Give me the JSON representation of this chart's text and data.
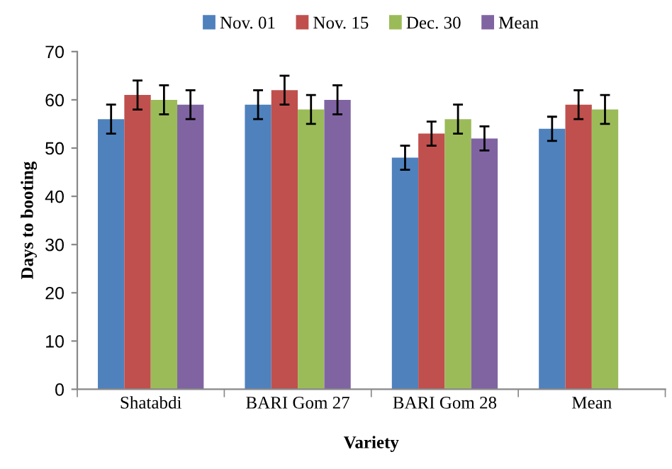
{
  "chart_data": {
    "type": "bar",
    "xlabel": "Variety",
    "ylabel": "Days to booting",
    "categories": [
      "Shatabdi",
      "BARI Gom 27",
      "BARI Gom 28",
      "Mean"
    ],
    "series": [
      {
        "name": "Nov. 01",
        "color": "#4f81bd",
        "values": [
          56,
          59,
          48,
          54
        ],
        "errors": [
          3,
          3,
          2.5,
          2.5
        ]
      },
      {
        "name": "Nov. 15",
        "color": "#c0504d",
        "values": [
          61,
          62,
          53,
          59
        ],
        "errors": [
          3,
          3,
          2.5,
          3
        ]
      },
      {
        "name": "Dec. 30",
        "color": "#9bbb59",
        "values": [
          60,
          58,
          56,
          58
        ],
        "errors": [
          3,
          3,
          3,
          3
        ]
      },
      {
        "name": "Mean",
        "color": "#8064a2",
        "values": [
          59,
          60,
          52,
          null
        ],
        "errors": [
          3,
          3,
          2.5,
          null
        ]
      }
    ],
    "ylim": [
      0,
      70
    ],
    "yticks": [
      0,
      10,
      20,
      30,
      40,
      50,
      60,
      70
    ],
    "grid": false,
    "legend": "top"
  }
}
